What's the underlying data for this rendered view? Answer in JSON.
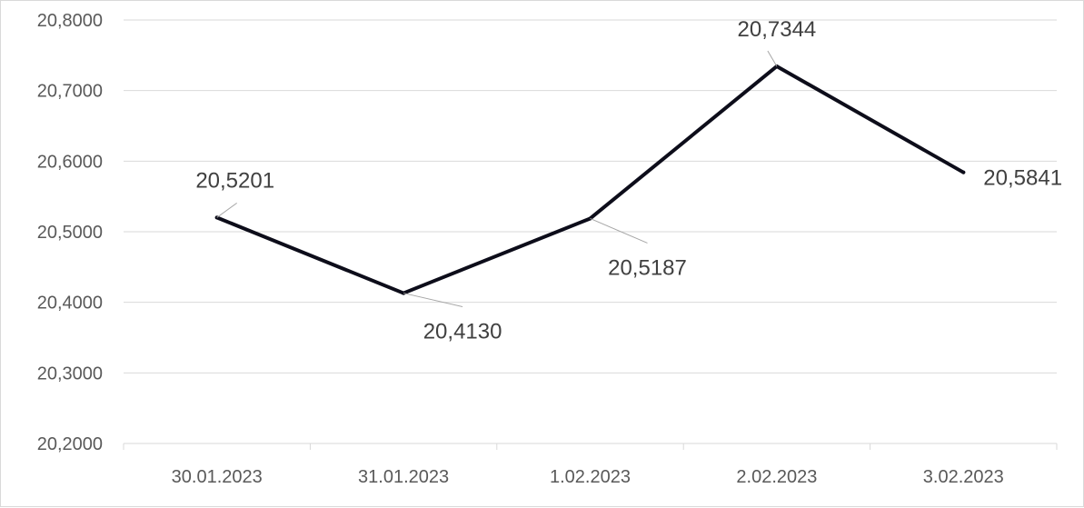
{
  "chart_data": {
    "type": "line",
    "title": "",
    "xlabel": "",
    "ylabel": "",
    "categories": [
      "30.01.2023",
      "31.01.2023",
      "1.02.2023",
      "2.02.2023",
      "3.02.2023"
    ],
    "series": [
      {
        "values": [
          20.5201,
          20.413,
          20.5187,
          20.7344,
          20.5841
        ],
        "labels": [
          "20,5201",
          "20,4130",
          "20,5187",
          "20,7344",
          "20,5841"
        ],
        "color": "#0d0d1a"
      }
    ],
    "ylim": [
      20.2,
      20.8
    ],
    "yticks": [
      20.2,
      20.3,
      20.4,
      20.5,
      20.6,
      20.7,
      20.8
    ],
    "ytick_labels": [
      "20,2000",
      "20,3000",
      "20,4000",
      "20,5000",
      "20,6000",
      "20,7000",
      "20,8000"
    ],
    "grid": true,
    "legend": "none"
  }
}
